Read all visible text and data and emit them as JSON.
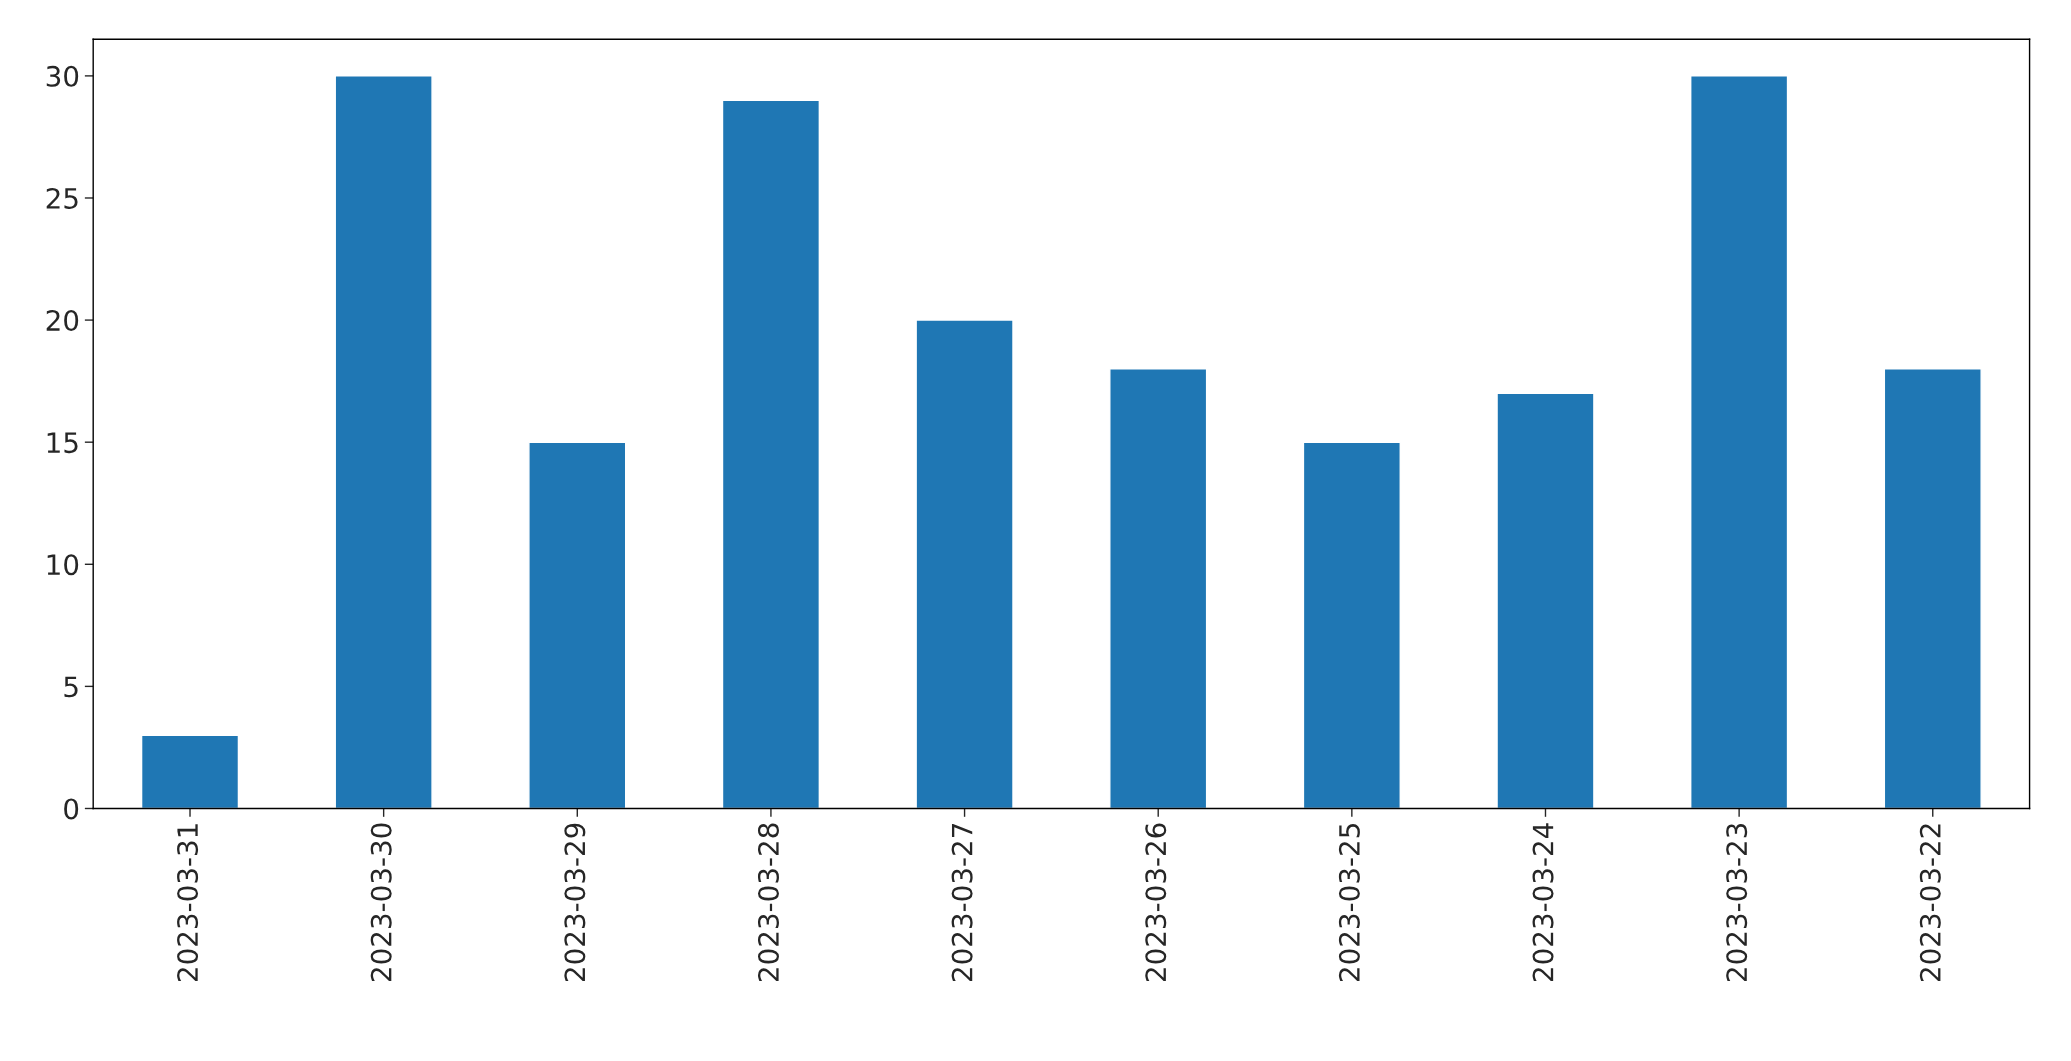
{
  "chart_data": {
    "type": "bar",
    "categories": [
      "2023-03-31",
      "2023-03-30",
      "2023-03-29",
      "2023-03-28",
      "2023-03-27",
      "2023-03-26",
      "2023-03-25",
      "2023-03-24",
      "2023-03-23",
      "2023-03-22"
    ],
    "values": [
      3,
      30,
      15,
      29,
      20,
      18,
      15,
      17,
      30,
      18
    ],
    "color": "#1f77b4",
    "ylim": [
      0,
      31.5
    ],
    "yticks": [
      0,
      5,
      10,
      15,
      20,
      25,
      30
    ],
    "grid": false,
    "legend": false
  }
}
